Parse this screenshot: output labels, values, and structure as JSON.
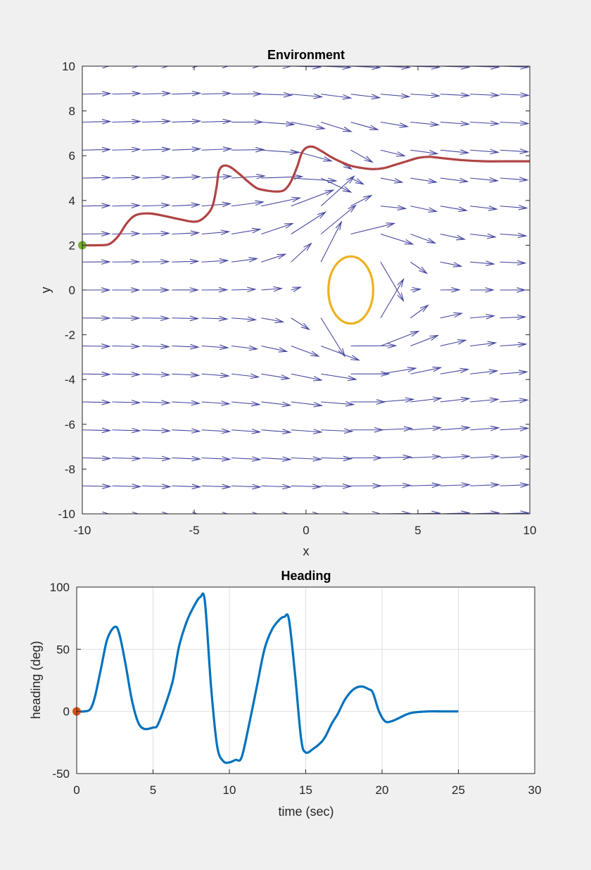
{
  "chart_data": [
    {
      "type": "quiver",
      "title": "Environment",
      "xlabel": "x",
      "ylabel": "y",
      "xlim": [
        -10,
        10
      ],
      "ylim": [
        -10,
        10
      ],
      "xticks": [
        -10,
        -5,
        0,
        5,
        10
      ],
      "yticks": [
        -10,
        -8,
        -6,
        -4,
        -2,
        0,
        2,
        4,
        6,
        8,
        10
      ],
      "grid": false,
      "colors": {
        "arrows": "#4646a0",
        "trajectory": "#b04444",
        "obstacle": "#edb120",
        "start": "#77ac30"
      },
      "obstacle": {
        "center": [
          2,
          0
        ],
        "radius_x": 1,
        "radius_y": 1.5
      },
      "start_point": [
        -10,
        2
      ],
      "trajectory": {
        "x": [
          -10,
          -9.3,
          -8.8,
          -8.4,
          -8.0,
          -7.6,
          -7.0,
          -6.3,
          -5.6,
          -5.0,
          -4.6,
          -4.2,
          -4.0,
          -3.9,
          -3.7,
          -3.4,
          -3.0,
          -2.6,
          -2.2,
          -1.8,
          -1.4,
          -1.0,
          -0.7,
          -0.4,
          -0.2,
          0.0,
          0.3,
          0.7,
          1.1,
          1.5,
          2.0,
          2.5,
          3.0,
          3.5,
          4.0,
          4.5,
          5.0,
          5.5,
          6.0,
          7.0,
          8.0,
          9.0,
          10.0
        ],
        "y": [
          2.0,
          2.0,
          2.05,
          2.4,
          3.0,
          3.35,
          3.42,
          3.3,
          3.15,
          3.05,
          3.2,
          3.7,
          4.6,
          5.3,
          5.55,
          5.5,
          5.2,
          4.85,
          4.55,
          4.45,
          4.4,
          4.45,
          4.8,
          5.5,
          6.1,
          6.35,
          6.4,
          6.2,
          5.95,
          5.75,
          5.55,
          5.45,
          5.4,
          5.45,
          5.6,
          5.75,
          5.9,
          5.95,
          5.9,
          5.8,
          5.75,
          5.75,
          5.75
        ]
      }
    },
    {
      "type": "line",
      "title": "Heading",
      "xlabel": "time (sec)",
      "ylabel": "heading (deg)",
      "xlim": [
        0,
        30
      ],
      "ylim": [
        -50,
        100
      ],
      "xticks": [
        0,
        5,
        10,
        15,
        20,
        25,
        30
      ],
      "yticks": [
        -50,
        0,
        50,
        100
      ],
      "grid": true,
      "colors": {
        "line": "#0072bd",
        "start": "#d95319"
      },
      "start_point": [
        0,
        0
      ],
      "x": [
        0,
        0.5,
        0.9,
        1.2,
        1.6,
        2.0,
        2.5,
        2.8,
        3.2,
        3.6,
        4.0,
        4.4,
        5.0,
        5.3,
        5.8,
        6.3,
        6.7,
        7.2,
        7.7,
        8.1,
        8.4,
        8.8,
        9.2,
        9.6,
        10.0,
        10.4,
        10.8,
        11.3,
        11.8,
        12.3,
        12.8,
        13.3,
        13.6,
        13.9,
        14.3,
        14.7,
        15.0,
        15.5,
        16.0,
        16.3,
        16.7,
        17.1,
        17.5,
        17.9,
        18.3,
        18.7,
        19.1,
        19.4,
        19.8,
        20.2,
        20.6,
        21.0,
        21.5,
        22.0,
        23.0,
        24.0,
        25.0
      ],
      "y": [
        0,
        0,
        2,
        12,
        35,
        58,
        68,
        62,
        38,
        10,
        -8,
        -14,
        -13,
        -11,
        5,
        25,
        52,
        72,
        85,
        92,
        88,
        20,
        -28,
        -40,
        -41,
        -39,
        -37,
        -10,
        20,
        50,
        66,
        74,
        76,
        74,
        30,
        -22,
        -33,
        -30,
        -25,
        -20,
        -10,
        -2,
        8,
        15,
        19,
        20,
        18,
        15,
        0,
        -8,
        -8,
        -6,
        -3,
        -1,
        0,
        0,
        0
      ]
    }
  ]
}
